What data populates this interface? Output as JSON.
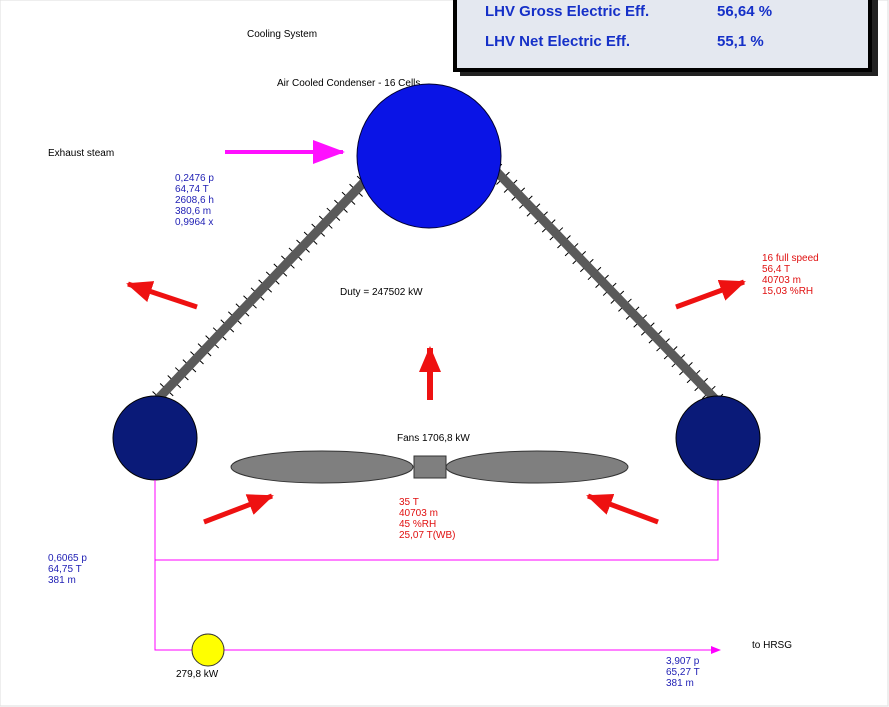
{
  "efficiency": [
    {
      "label": "LHV Gross Electric Eff.",
      "value": "56,64 %"
    },
    {
      "label": "LHV Net Electric Eff.",
      "value": "55,1 %"
    }
  ],
  "title": "Cooling System",
  "condenser": "Air Cooled Condenser - 16 Cells",
  "exhaust": {
    "label": "Exhaust steam",
    "lines": [
      "0,2476 p",
      "64,74 T",
      "2608,6 h",
      "380,6 m",
      "0,9964 x"
    ]
  },
  "duty": "Duty = 247502  kW",
  "air_out": [
    "16 full speed",
    "56,4 T",
    "40703 m",
    "15,03 %RH"
  ],
  "fans": "Fans 1706,8 kW",
  "air_in": [
    "35 T",
    "40703 m",
    "45 %RH",
    "25,07 T(WB)"
  ],
  "condensate": [
    "0,6065 p",
    "64,75 T",
    "381 m"
  ],
  "pump": "279,8 kW",
  "outlet": {
    "label": "to HRSG",
    "lines": [
      "3,907 p",
      "65,27 T",
      "381 m"
    ]
  }
}
